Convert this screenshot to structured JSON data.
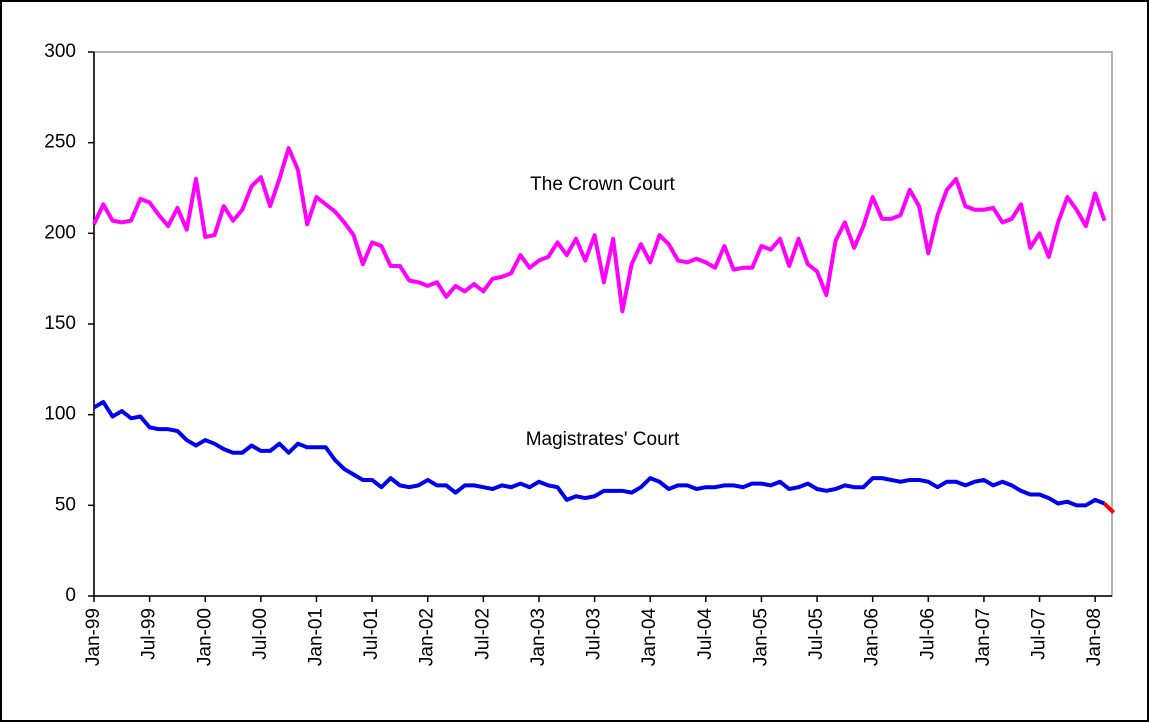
{
  "chart_data": {
    "type": "line",
    "categories": [
      "Jan-99",
      null,
      null,
      null,
      null,
      null,
      "Jul-99",
      null,
      null,
      null,
      null,
      null,
      "Jan-00",
      null,
      null,
      null,
      null,
      null,
      "Jul-00",
      null,
      null,
      null,
      null,
      null,
      "Jan-01",
      null,
      null,
      null,
      null,
      null,
      "Jul-01",
      null,
      null,
      null,
      null,
      null,
      "Jan-02",
      null,
      null,
      null,
      null,
      null,
      "Jul-02",
      null,
      null,
      null,
      null,
      null,
      "Jan-03",
      null,
      null,
      null,
      null,
      null,
      "Jul-03",
      null,
      null,
      null,
      null,
      null,
      "Jan-04",
      null,
      null,
      null,
      null,
      null,
      "Jul-04",
      null,
      null,
      null,
      null,
      null,
      "Jan-05",
      null,
      null,
      null,
      null,
      null,
      "Jul-05",
      null,
      null,
      null,
      null,
      null,
      "Jan-06",
      null,
      null,
      null,
      null,
      null,
      "Jul-06",
      null,
      null,
      null,
      null,
      null,
      "Jan-07",
      null,
      null,
      null,
      null,
      null,
      "Jul-07",
      null,
      null,
      null,
      null,
      null,
      "Jan-08",
      null,
      null
    ],
    "series": [
      {
        "name": "The Crown Court",
        "color": "#ff00ff",
        "values": [
          205,
          216,
          207,
          206,
          207,
          219,
          217,
          210,
          204,
          214,
          202,
          230,
          198,
          199,
          215,
          207,
          213,
          226,
          231,
          215,
          230,
          247,
          235,
          205,
          220,
          216,
          212,
          206,
          199,
          183,
          195,
          193,
          182,
          182,
          174,
          173,
          171,
          173,
          165,
          171,
          168,
          172,
          168,
          175,
          176,
          178,
          188,
          181,
          185,
          187,
          195,
          188,
          197,
          185,
          199,
          173,
          197,
          157,
          183,
          194,
          184,
          199,
          194,
          185,
          184,
          186,
          184,
          181,
          193,
          180,
          181,
          181,
          193,
          191,
          197,
          182,
          197,
          183,
          179,
          166,
          196,
          206,
          192,
          204,
          220,
          208,
          208,
          210,
          224,
          215,
          189,
          210,
          224,
          230,
          215,
          213,
          213,
          214,
          206,
          208,
          216,
          192,
          200,
          187,
          206,
          220,
          213,
          204,
          222,
          207,
          null
        ]
      },
      {
        "name": "Magistrates' Court",
        "color": "#0000ee",
        "end_color": "#ff0000",
        "values": [
          104,
          107,
          99,
          102,
          98,
          99,
          93,
          92,
          92,
          91,
          86,
          83,
          86,
          84,
          81,
          79,
          79,
          83,
          80,
          80,
          84,
          79,
          84,
          82,
          82,
          82,
          75,
          70,
          67,
          64,
          64,
          60,
          65,
          61,
          60,
          61,
          64,
          61,
          61,
          57,
          61,
          61,
          60,
          59,
          61,
          60,
          62,
          60,
          63,
          61,
          60,
          53,
          55,
          54,
          55,
          58,
          58,
          58,
          57,
          60,
          65,
          63,
          59,
          61,
          61,
          59,
          60,
          60,
          61,
          61,
          60,
          62,
          62,
          61,
          63,
          59,
          60,
          62,
          59,
          58,
          59,
          61,
          60,
          60,
          65,
          65,
          64,
          63,
          64,
          64,
          63,
          60,
          63,
          63,
          61,
          63,
          64,
          61,
          63,
          61,
          58,
          56,
          56,
          54,
          51,
          52,
          50,
          50,
          53,
          51,
          46
        ]
      }
    ],
    "ylim": [
      0,
      300
    ],
    "yticks": [
      0,
      50,
      100,
      150,
      200,
      250,
      300
    ],
    "grid": false
  }
}
